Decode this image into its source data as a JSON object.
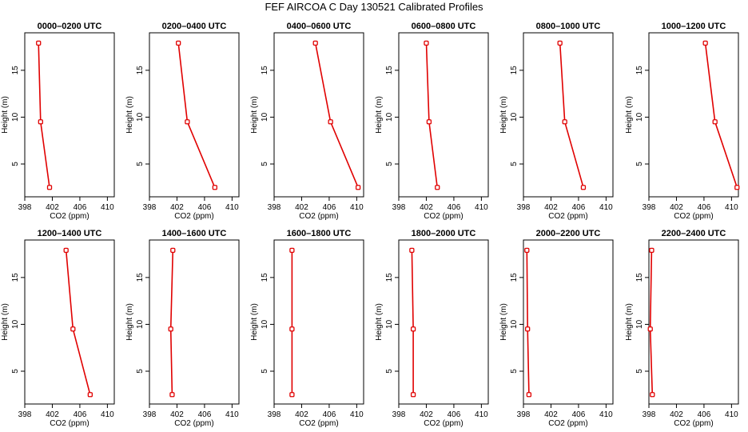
{
  "figure": {
    "title": "FEF AIRCOA C  Day 130521  Calibrated Profiles"
  },
  "colors": {
    "line": "#e00000",
    "axis": "#000000"
  },
  "chart_data": [
    {
      "type": "line",
      "title": "0000–0200 UTC",
      "xlabel": "CO2 (ppm)",
      "ylabel": "Height (m)",
      "xlim": [
        398,
        411
      ],
      "ylim": [
        1.5,
        19
      ],
      "xticks": [
        398,
        402,
        406,
        410
      ],
      "yticks": [
        5,
        10,
        15
      ],
      "series": [
        {
          "name": "profile",
          "x": [
            400.0,
            400.3,
            401.6
          ],
          "y": [
            17.9,
            9.5,
            2.5
          ]
        }
      ]
    },
    {
      "type": "line",
      "title": "0200–0400 UTC",
      "xlabel": "CO2 (ppm)",
      "ylabel": "Height (m)",
      "xlim": [
        398,
        411
      ],
      "ylim": [
        1.5,
        19
      ],
      "xticks": [
        398,
        402,
        406,
        410
      ],
      "yticks": [
        5,
        10,
        15
      ],
      "series": [
        {
          "name": "profile",
          "x": [
            402.2,
            403.5,
            407.5
          ],
          "y": [
            17.9,
            9.5,
            2.5
          ]
        }
      ]
    },
    {
      "type": "line",
      "title": "0400–0600 UTC",
      "xlabel": "CO2 (ppm)",
      "ylabel": "Height (m)",
      "xlim": [
        398,
        411
      ],
      "ylim": [
        1.5,
        19
      ],
      "xticks": [
        398,
        402,
        406,
        410
      ],
      "yticks": [
        5,
        10,
        15
      ],
      "series": [
        {
          "name": "profile",
          "x": [
            404.0,
            406.2,
            410.2
          ],
          "y": [
            17.9,
            9.5,
            2.5
          ]
        }
      ]
    },
    {
      "type": "line",
      "title": "0600–0800 UTC",
      "xlabel": "CO2 (ppm)",
      "ylabel": "Height (m)",
      "xlim": [
        398,
        411
      ],
      "ylim": [
        1.5,
        19
      ],
      "xticks": [
        398,
        402,
        406,
        410
      ],
      "yticks": [
        5,
        10,
        15
      ],
      "series": [
        {
          "name": "profile",
          "x": [
            402.0,
            402.4,
            403.6
          ],
          "y": [
            17.9,
            9.5,
            2.5
          ]
        }
      ]
    },
    {
      "type": "line",
      "title": "0800–1000 UTC",
      "xlabel": "CO2 (ppm)",
      "ylabel": "Height (m)",
      "xlim": [
        398,
        411
      ],
      "ylim": [
        1.5,
        19
      ],
      "xticks": [
        398,
        402,
        406,
        410
      ],
      "yticks": [
        5,
        10,
        15
      ],
      "series": [
        {
          "name": "profile",
          "x": [
            403.3,
            404.0,
            406.7
          ],
          "y": [
            17.9,
            9.5,
            2.5
          ]
        }
      ]
    },
    {
      "type": "line",
      "title": "1000–1200 UTC",
      "xlabel": "CO2 (ppm)",
      "ylabel": "Height (m)",
      "xlim": [
        398,
        411
      ],
      "ylim": [
        1.5,
        19
      ],
      "xticks": [
        398,
        402,
        406,
        410
      ],
      "yticks": [
        5,
        10,
        15
      ],
      "series": [
        {
          "name": "profile",
          "x": [
            406.2,
            407.6,
            410.8
          ],
          "y": [
            17.9,
            9.5,
            2.5
          ]
        }
      ]
    },
    {
      "type": "line",
      "title": "1200–1400 UTC",
      "xlabel": "CO2 (ppm)",
      "ylabel": "Height (m)",
      "xlim": [
        398,
        411
      ],
      "ylim": [
        1.5,
        19
      ],
      "xticks": [
        398,
        402,
        406,
        410
      ],
      "yticks": [
        5,
        10,
        15
      ],
      "series": [
        {
          "name": "profile",
          "x": [
            404.0,
            405.0,
            407.5
          ],
          "y": [
            17.9,
            9.5,
            2.5
          ]
        }
      ]
    },
    {
      "type": "line",
      "title": "1400–1600 UTC",
      "xlabel": "CO2 (ppm)",
      "ylabel": "Height (m)",
      "xlim": [
        398,
        411
      ],
      "ylim": [
        1.5,
        19
      ],
      "xticks": [
        398,
        402,
        406,
        410
      ],
      "yticks": [
        5,
        10,
        15
      ],
      "series": [
        {
          "name": "profile",
          "x": [
            401.4,
            401.1,
            401.3
          ],
          "y": [
            17.9,
            9.5,
            2.5
          ]
        }
      ]
    },
    {
      "type": "line",
      "title": "1600–1800 UTC",
      "xlabel": "CO2 (ppm)",
      "ylabel": "Height (m)",
      "xlim": [
        398,
        411
      ],
      "ylim": [
        1.5,
        19
      ],
      "xticks": [
        398,
        402,
        406,
        410
      ],
      "yticks": [
        5,
        10,
        15
      ],
      "series": [
        {
          "name": "profile",
          "x": [
            400.6,
            400.6,
            400.6
          ],
          "y": [
            17.9,
            9.5,
            2.5
          ]
        }
      ]
    },
    {
      "type": "line",
      "title": "1800–2000 UTC",
      "xlabel": "CO2 (ppm)",
      "ylabel": "Height (m)",
      "xlim": [
        398,
        411
      ],
      "ylim": [
        1.5,
        19
      ],
      "xticks": [
        398,
        402,
        406,
        410
      ],
      "yticks": [
        5,
        10,
        15
      ],
      "series": [
        {
          "name": "profile",
          "x": [
            399.9,
            400.1,
            400.1
          ],
          "y": [
            17.9,
            9.5,
            2.5
          ]
        }
      ]
    },
    {
      "type": "line",
      "title": "2000–2200 UTC",
      "xlabel": "CO2 (ppm)",
      "ylabel": "Height (m)",
      "xlim": [
        398,
        411
      ],
      "ylim": [
        1.5,
        19
      ],
      "xticks": [
        398,
        402,
        406,
        410
      ],
      "yticks": [
        5,
        10,
        15
      ],
      "series": [
        {
          "name": "profile",
          "x": [
            398.5,
            398.6,
            398.8
          ],
          "y": [
            17.9,
            9.5,
            2.5
          ]
        }
      ]
    },
    {
      "type": "line",
      "title": "2200–2400 UTC",
      "xlabel": "CO2 (ppm)",
      "ylabel": "Height (m)",
      "xlim": [
        398,
        411
      ],
      "ylim": [
        1.5,
        19
      ],
      "xticks": [
        398,
        402,
        406,
        410
      ],
      "yticks": [
        5,
        10,
        15
      ],
      "series": [
        {
          "name": "profile",
          "x": [
            398.4,
            398.2,
            398.5
          ],
          "y": [
            17.9,
            9.5,
            2.5
          ]
        }
      ]
    }
  ]
}
